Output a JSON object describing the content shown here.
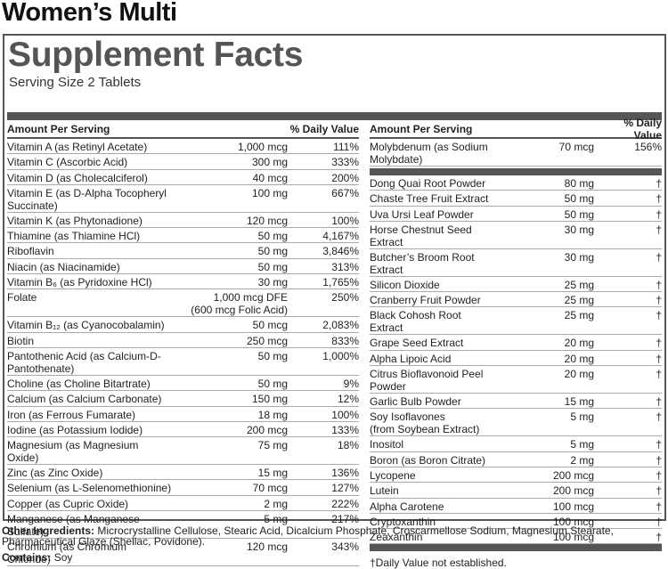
{
  "title": "Women’s Multi",
  "panel": {
    "heading": "Supplement Facts",
    "serving_size": "Serving Size 2 Tablets",
    "left": {
      "header": {
        "amount": "Amount Per Serving",
        "dv": "% Daily Value"
      },
      "rows": [
        [
          "Vitamin A (as Retinyl Acetate)",
          "1,000 mcg",
          "111%"
        ],
        [
          "Vitamin C (Ascorbic Acid)",
          "300 mg",
          "333%"
        ],
        [
          "Vitamin D (as Cholecalciferol)",
          "40 mcg",
          "200%"
        ],
        [
          "Vitamin E (as D-Alpha Tocopheryl Succinate)",
          "100 mg",
          "667%"
        ],
        [
          "Vitamin K (as Phytonadione)",
          "120 mcg",
          "100%"
        ],
        [
          "Thiamine (as Thiamine HCl)",
          "50 mg",
          "4,167%"
        ],
        [
          "Riboflavin",
          "50 mg",
          "3,846%"
        ],
        [
          "Niacin (as Niacinamide)",
          "50 mg",
          "313%"
        ],
        [
          "Vitamin B₆ (as Pyridoxine HCl)",
          "30 mg",
          "1,765%"
        ],
        [
          "Folate",
          "1,000 mcg DFE\n(600 mcg Folic Acid)",
          "250%"
        ],
        [
          "Vitamin B₁₂ (as Cyanocobalamin)",
          "50 mcg",
          "2,083%"
        ],
        [
          "Biotin",
          "250 mcg",
          "833%"
        ],
        [
          "Pantothenic Acid (as Calcium-D-Pantothenate)",
          "50 mg",
          "1,000%"
        ],
        [
          "Choline (as Choline Bitartrate)",
          "50 mg",
          "9%"
        ],
        [
          "Calcium (as Calcium Carbonate)",
          "150 mg",
          "12%"
        ],
        [
          "Iron (as Ferrous Fumarate)",
          "18 mg",
          "100%"
        ],
        [
          "Iodine (as Potassium Iodide)",
          "200 mcg",
          "133%"
        ],
        [
          "Magnesium (as Magnesium Oxide)",
          "75 mg",
          "18%"
        ],
        [
          "Zinc (as Zinc Oxide)",
          "15 mg",
          "136%"
        ],
        [
          "Selenium (as L-Selenomethionine)",
          "70 mcg",
          "127%"
        ],
        [
          "Copper (as Cupric Oxide)",
          "2 mg",
          "222%"
        ],
        [
          "Manganese (as Manganese Sulfate)",
          "5 mg",
          "217%"
        ],
        [
          "Chromium (as Chromium Chloride)",
          "120 mcg",
          "343%"
        ]
      ]
    },
    "right": {
      "header": {
        "amount": "Amount Per Serving",
        "dv": "% Daily Value"
      },
      "rows_top": [
        [
          "Molybdenum (as Sodium Molybdate)",
          "70 mcg",
          "156%"
        ]
      ],
      "rows": [
        [
          "Dong Quai Root Powder",
          "80 mg",
          "†"
        ],
        [
          "Chaste Tree Fruit Extract",
          "50 mg",
          "†"
        ],
        [
          "Uva Ursi Leaf Powder",
          "50 mg",
          "†"
        ],
        [
          "Horse Chestnut Seed Extract",
          "30 mg",
          "†"
        ],
        [
          "Butcher’s Broom Root Extract",
          "30 mg",
          "†"
        ],
        [
          "Silicon Dioxide",
          "25 mg",
          "†"
        ],
        [
          "Cranberry Fruit Powder",
          "25 mg",
          "†"
        ],
        [
          "Black Cohosh Root Extract",
          "25 mg",
          "†"
        ],
        [
          "Grape Seed Extract",
          "20 mg",
          "†"
        ],
        [
          "Alpha Lipoic Acid",
          "20 mg",
          "†"
        ],
        [
          "Citrus Bioflavonoid Peel Powder",
          "20 mg",
          "†"
        ],
        [
          "Garlic Bulb Powder",
          "15 mg",
          "†"
        ],
        [
          "Soy Isoflavones\n   (from Soybean Extract)",
          "5 mg",
          "†"
        ],
        [
          "Inositol",
          "5 mg",
          "†"
        ],
        [
          "Boron (as Boron Citrate)",
          "2 mg",
          "†"
        ],
        [
          "Lycopene",
          "200 mcg",
          "†"
        ],
        [
          "Lutein",
          "200 mcg",
          "†"
        ],
        [
          "Alpha Carotene",
          "100 mcg",
          "†"
        ],
        [
          "Cryptoxanthin",
          "100 mcg",
          "†"
        ],
        [
          "Zeaxanthin",
          "100 mcg",
          "†"
        ]
      ],
      "footnote": "†Daily Value not established."
    }
  },
  "other_ingredients": {
    "label": "Other Ingredients:",
    "text": "Microcrystalline Cellulose, Stearic Acid, Dicalcium Phosphate, Croscarmellose Sodium, Magnesium Stearate, Pharmaceutical Glaze (Shellac, Povidone)."
  },
  "contains": {
    "label": "Contains:",
    "text": "Soy"
  }
}
